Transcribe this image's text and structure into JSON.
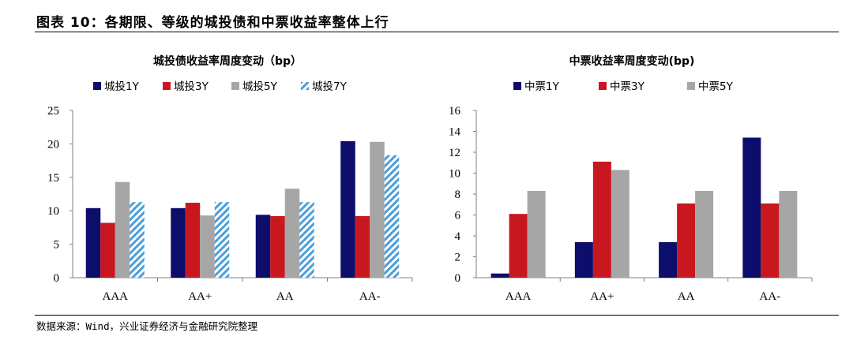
{
  "figure": {
    "title": "图表 10：各期限、等级的城投债和中票收益率整体上行",
    "source": "数据来源：Wind，兴业证券经济与金融研究院整理"
  },
  "chart_data": [
    {
      "type": "bar",
      "title": "城投债收益率周度变动（bp）",
      "xlabel": "",
      "ylabel": "",
      "categories": [
        "AAA",
        "AA+",
        "AA",
        "AA-"
      ],
      "ylim": [
        0,
        25
      ],
      "yticks": [
        0,
        5,
        10,
        15,
        20,
        25
      ],
      "legend_position": "top",
      "series": [
        {
          "name": "城投1Y",
          "values": [
            10.4,
            10.4,
            9.4,
            20.4
          ],
          "color": "#0d0d6b",
          "pattern": "solid"
        },
        {
          "name": "城投3Y",
          "values": [
            8.2,
            11.2,
            9.2,
            9.2
          ],
          "color": "#c8171e",
          "pattern": "solid"
        },
        {
          "name": "城投5Y",
          "values": [
            14.3,
            9.3,
            13.3,
            20.3
          ],
          "color": "#a6a6a6",
          "pattern": "solid"
        },
        {
          "name": "城投7Y",
          "values": [
            11.3,
            11.3,
            11.3,
            18.3
          ],
          "color": "#4a9fd9",
          "pattern": "hatch"
        }
      ]
    },
    {
      "type": "bar",
      "title": "中票收益率周度变动(bp)",
      "xlabel": "",
      "ylabel": "",
      "categories": [
        "AAA",
        "AA+",
        "AA",
        "AA-"
      ],
      "ylim": [
        0,
        16
      ],
      "yticks": [
        0,
        2,
        4,
        6,
        8,
        10,
        12,
        14,
        16
      ],
      "legend_position": "top",
      "series": [
        {
          "name": "中票1Y",
          "values": [
            0.4,
            3.4,
            3.4,
            13.4
          ],
          "color": "#0d0d6b",
          "pattern": "solid"
        },
        {
          "name": "中票3Y",
          "values": [
            6.1,
            11.1,
            7.1,
            7.1
          ],
          "color": "#c8171e",
          "pattern": "solid"
        },
        {
          "name": "中票5Y",
          "values": [
            8.3,
            10.3,
            8.3,
            8.3
          ],
          "color": "#a6a6a6",
          "pattern": "solid"
        }
      ]
    }
  ]
}
